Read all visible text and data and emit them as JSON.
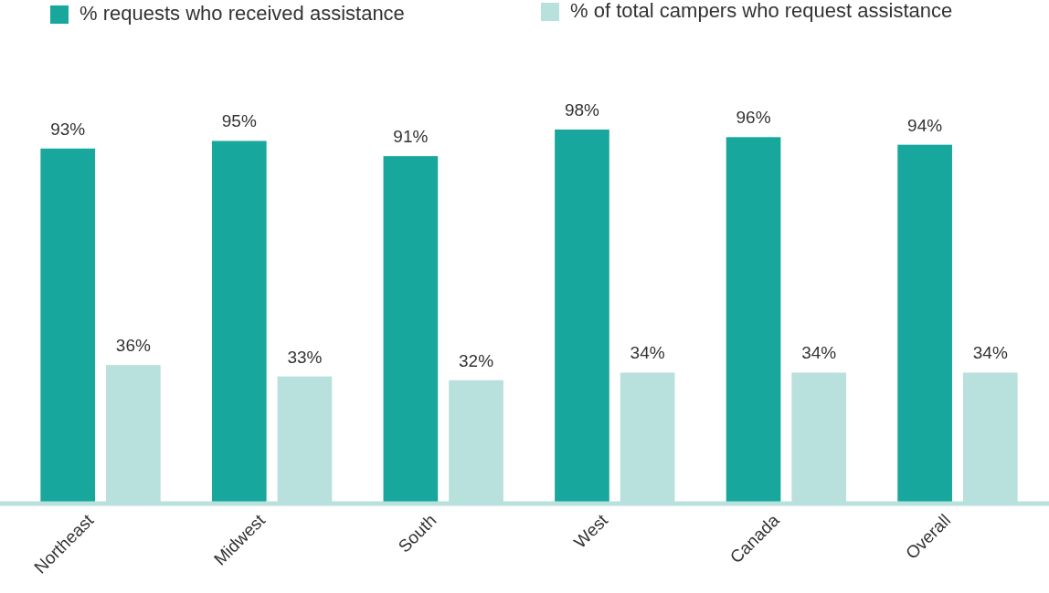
{
  "chart_data": {
    "type": "bar",
    "categories": [
      "Northeast",
      "Midwest",
      "South",
      "West",
      "Canada",
      "Overall"
    ],
    "series": [
      {
        "name": "% requests who received assistance",
        "color": "#17a79c",
        "values": [
          93,
          95,
          91,
          98,
          96,
          94
        ],
        "value_labels": [
          "93%",
          "95%",
          "91%",
          "98%",
          "96%",
          "94%"
        ]
      },
      {
        "name": "% of total campers who request assistance",
        "color": "#b8e0dc",
        "values": [
          36,
          33,
          32,
          34,
          34,
          34
        ],
        "value_labels": [
          "36%",
          "33%",
          "32%",
          "34%",
          "34%",
          "34%"
        ]
      }
    ],
    "legend": "top"
  }
}
